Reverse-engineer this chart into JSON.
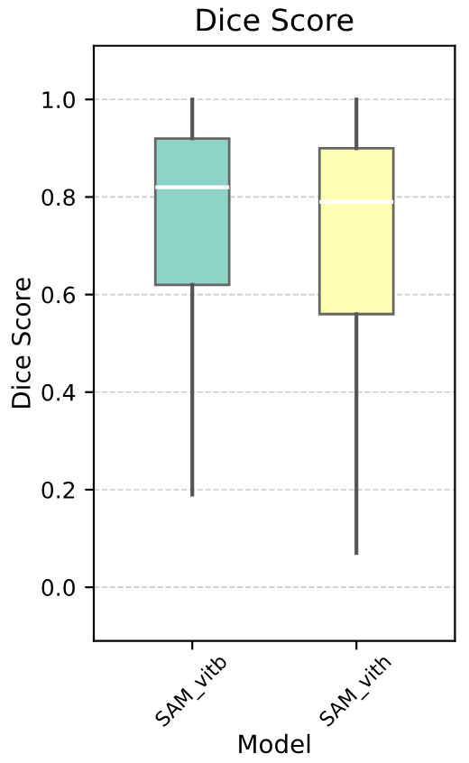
{
  "chart_data": {
    "type": "box",
    "title": "Dice Score",
    "xlabel": "Model",
    "ylabel": "Dice Score",
    "categories": [
      "SAM_vitb",
      "SAM_vith"
    ],
    "boxes": [
      {
        "low": 0.19,
        "q1": 0.62,
        "median": 0.82,
        "q3": 0.92,
        "high": 1.0
      },
      {
        "low": 0.07,
        "q1": 0.56,
        "median": 0.79,
        "q3": 0.9,
        "high": 1.0
      }
    ],
    "colors": [
      "#8dd3c7",
      "#ffffb3"
    ],
    "ylim": [
      -0.11,
      1.11
    ],
    "yticks": [
      {
        "value": 0,
        "label": "0.0"
      },
      {
        "value": 0.2,
        "label": "0.2"
      },
      {
        "value": 0.4,
        "label": "0.4"
      },
      {
        "value": 0.6,
        "label": "0.6"
      },
      {
        "value": 0.8,
        "label": "0.8"
      },
      {
        "value": 1.0,
        "label": "1.0"
      }
    ],
    "grid": "y"
  }
}
